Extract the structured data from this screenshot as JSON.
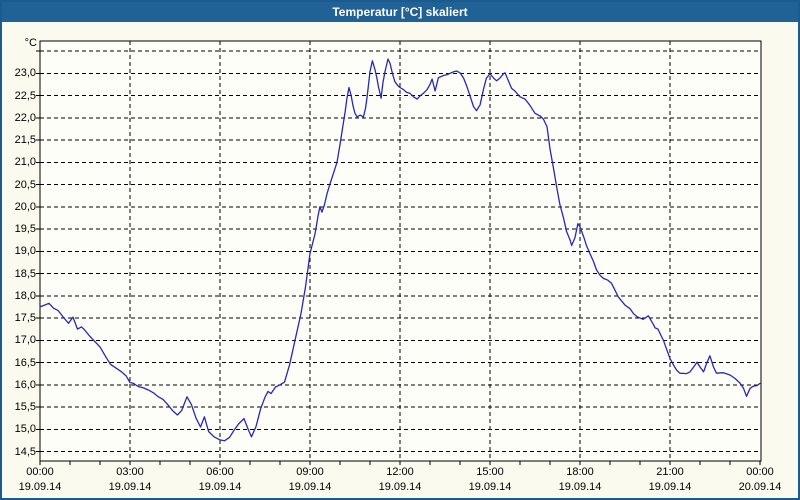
{
  "window": {
    "title": "Temperatur [°C] skaliert"
  },
  "colors": {
    "window_border": "#1b5a8e",
    "titlebar_bg": "#206196",
    "titlebar_text": "#ffffff",
    "content_bg": "#fafaef",
    "plot_bg": "#fefef8",
    "grid": "#000000",
    "axis": "#000000",
    "line": "#2828b4",
    "label_text": "#000000"
  },
  "chart_data": {
    "type": "line",
    "title": "Temperatur [°C] skaliert",
    "unit_label": "°C",
    "xlabel": "",
    "ylabel": "°C",
    "grid": "dashed",
    "legend": "none",
    "ylim": [
      14.3,
      23.7
    ],
    "xlim_hours": [
      0,
      24
    ],
    "y_gridline_values": [
      23.5,
      23.0,
      22.5,
      22.0,
      21.5,
      21.0,
      20.5,
      20.0,
      19.5,
      19.0,
      18.5,
      18.0,
      17.5,
      17.0,
      16.5,
      16.0,
      15.5,
      15.0,
      14.5
    ],
    "y_ticks": [
      {
        "value": 23.0,
        "label": "23,0"
      },
      {
        "value": 22.5,
        "label": "22,5"
      },
      {
        "value": 22.0,
        "label": "22,0"
      },
      {
        "value": 21.5,
        "label": "21,5"
      },
      {
        "value": 21.0,
        "label": "21,0"
      },
      {
        "value": 20.5,
        "label": "20,5"
      },
      {
        "value": 20.0,
        "label": "20,0"
      },
      {
        "value": 19.5,
        "label": "19,5"
      },
      {
        "value": 19.0,
        "label": "19,0"
      },
      {
        "value": 18.5,
        "label": "18,5"
      },
      {
        "value": 18.0,
        "label": "18,0"
      },
      {
        "value": 17.5,
        "label": "17,5"
      },
      {
        "value": 17.0,
        "label": "17,0"
      },
      {
        "value": 16.5,
        "label": "16,5"
      },
      {
        "value": 16.0,
        "label": "16,0"
      },
      {
        "value": 15.5,
        "label": "15,5"
      },
      {
        "value": 15.0,
        "label": "15,0"
      },
      {
        "value": 14.5,
        "label": "14,5"
      }
    ],
    "x_gridline_hours": [
      3,
      6,
      9,
      12,
      15,
      18,
      21
    ],
    "x_minor_tick_every_hours": 1,
    "x_ticks": [
      {
        "hour": 0,
        "time": "00:00",
        "date": "19.09.14"
      },
      {
        "hour": 3,
        "time": "03:00",
        "date": "19.09.14"
      },
      {
        "hour": 6,
        "time": "06:00",
        "date": "19.09.14"
      },
      {
        "hour": 9,
        "time": "09:00",
        "date": "19.09.14"
      },
      {
        "hour": 12,
        "time": "12:00",
        "date": "19.09.14"
      },
      {
        "hour": 15,
        "time": "15:00",
        "date": "19.09.14"
      },
      {
        "hour": 18,
        "time": "18:00",
        "date": "19.09.14"
      },
      {
        "hour": 21,
        "time": "21:00",
        "date": "19.09.14"
      },
      {
        "hour": 24,
        "time": "00:00",
        "date": "20.09.14"
      }
    ],
    "series": [
      {
        "name": "Temperatur",
        "color": "#2828b4",
        "points_hour_degC": [
          [
            0.0,
            17.75
          ],
          [
            0.15,
            17.79
          ],
          [
            0.3,
            17.83
          ],
          [
            0.45,
            17.72
          ],
          [
            0.6,
            17.67
          ],
          [
            0.8,
            17.5
          ],
          [
            0.95,
            17.38
          ],
          [
            1.1,
            17.52
          ],
          [
            1.25,
            17.25
          ],
          [
            1.38,
            17.3
          ],
          [
            1.48,
            17.24
          ],
          [
            1.62,
            17.12
          ],
          [
            1.8,
            16.99
          ],
          [
            2.0,
            16.85
          ],
          [
            2.2,
            16.62
          ],
          [
            2.35,
            16.46
          ],
          [
            2.52,
            16.38
          ],
          [
            2.7,
            16.3
          ],
          [
            2.87,
            16.2
          ],
          [
            3.0,
            16.05
          ],
          [
            3.12,
            16.03
          ],
          [
            3.27,
            15.96
          ],
          [
            3.45,
            15.93
          ],
          [
            3.62,
            15.88
          ],
          [
            3.78,
            15.82
          ],
          [
            3.92,
            15.74
          ],
          [
            4.1,
            15.67
          ],
          [
            4.25,
            15.56
          ],
          [
            4.42,
            15.42
          ],
          [
            4.58,
            15.32
          ],
          [
            4.72,
            15.42
          ],
          [
            4.9,
            15.73
          ],
          [
            5.05,
            15.55
          ],
          [
            5.2,
            15.25
          ],
          [
            5.35,
            15.05
          ],
          [
            5.48,
            15.28
          ],
          [
            5.62,
            14.95
          ],
          [
            5.8,
            14.83
          ],
          [
            6.0,
            14.76
          ],
          [
            6.15,
            14.74
          ],
          [
            6.32,
            14.82
          ],
          [
            6.47,
            14.98
          ],
          [
            6.62,
            15.12
          ],
          [
            6.8,
            15.24
          ],
          [
            6.95,
            14.98
          ],
          [
            7.05,
            14.83
          ],
          [
            7.2,
            15.06
          ],
          [
            7.35,
            15.45
          ],
          [
            7.5,
            15.72
          ],
          [
            7.6,
            15.85
          ],
          [
            7.7,
            15.8
          ],
          [
            7.85,
            15.95
          ],
          [
            8.0,
            16.0
          ],
          [
            8.15,
            16.06
          ],
          [
            8.32,
            16.45
          ],
          [
            8.5,
            17.0
          ],
          [
            8.7,
            17.6
          ],
          [
            8.85,
            18.2
          ],
          [
            9.0,
            18.95
          ],
          [
            9.17,
            19.4
          ],
          [
            9.27,
            19.8
          ],
          [
            9.33,
            20.0
          ],
          [
            9.4,
            19.88
          ],
          [
            9.48,
            20.04
          ],
          [
            9.57,
            20.3
          ],
          [
            9.67,
            20.52
          ],
          [
            9.78,
            20.75
          ],
          [
            9.9,
            21.0
          ],
          [
            10.0,
            21.4
          ],
          [
            10.1,
            21.83
          ],
          [
            10.17,
            22.13
          ],
          [
            10.23,
            22.43
          ],
          [
            10.3,
            22.68
          ],
          [
            10.37,
            22.5
          ],
          [
            10.44,
            22.25
          ],
          [
            10.5,
            22.1
          ],
          [
            10.57,
            22.02
          ],
          [
            10.67,
            22.06
          ],
          [
            10.78,
            22.02
          ],
          [
            10.85,
            22.21
          ],
          [
            10.9,
            22.45
          ],
          [
            10.95,
            22.74
          ],
          [
            11.0,
            23.04
          ],
          [
            11.08,
            23.28
          ],
          [
            11.17,
            23.07
          ],
          [
            11.23,
            22.89
          ],
          [
            11.28,
            22.7
          ],
          [
            11.37,
            22.44
          ],
          [
            11.43,
            22.78
          ],
          [
            11.5,
            23.04
          ],
          [
            11.6,
            23.32
          ],
          [
            11.67,
            23.22
          ],
          [
            11.72,
            23.07
          ],
          [
            11.78,
            22.92
          ],
          [
            11.83,
            22.81
          ],
          [
            11.93,
            22.72
          ],
          [
            12.0,
            22.68
          ],
          [
            12.12,
            22.63
          ],
          [
            12.22,
            22.57
          ],
          [
            12.33,
            22.55
          ],
          [
            12.45,
            22.47
          ],
          [
            12.57,
            22.42
          ],
          [
            12.67,
            22.49
          ],
          [
            12.78,
            22.55
          ],
          [
            12.9,
            22.63
          ],
          [
            13.0,
            22.75
          ],
          [
            13.07,
            22.87
          ],
          [
            13.17,
            22.6
          ],
          [
            13.28,
            22.9
          ],
          [
            13.45,
            22.95
          ],
          [
            13.57,
            22.97
          ],
          [
            13.67,
            23.0
          ],
          [
            13.78,
            23.03
          ],
          [
            13.88,
            23.05
          ],
          [
            14.0,
            23.01
          ],
          [
            14.12,
            22.89
          ],
          [
            14.22,
            22.72
          ],
          [
            14.33,
            22.5
          ],
          [
            14.45,
            22.25
          ],
          [
            14.55,
            22.16
          ],
          [
            14.67,
            22.29
          ],
          [
            14.78,
            22.63
          ],
          [
            14.88,
            22.89
          ],
          [
            15.0,
            22.99
          ],
          [
            15.12,
            22.89
          ],
          [
            15.22,
            22.83
          ],
          [
            15.33,
            22.89
          ],
          [
            15.45,
            22.99
          ],
          [
            15.5,
            23.01
          ],
          [
            15.62,
            22.82
          ],
          [
            15.72,
            22.66
          ],
          [
            15.83,
            22.6
          ],
          [
            16.0,
            22.47
          ],
          [
            16.17,
            22.42
          ],
          [
            16.33,
            22.28
          ],
          [
            16.5,
            22.1
          ],
          [
            16.67,
            22.04
          ],
          [
            16.78,
            21.97
          ],
          [
            16.9,
            21.8
          ],
          [
            17.0,
            21.3
          ],
          [
            17.12,
            20.85
          ],
          [
            17.22,
            20.45
          ],
          [
            17.33,
            20.05
          ],
          [
            17.45,
            19.75
          ],
          [
            17.55,
            19.45
          ],
          [
            17.67,
            19.25
          ],
          [
            17.72,
            19.13
          ],
          [
            17.83,
            19.3
          ],
          [
            17.93,
            19.62
          ],
          [
            18.0,
            19.55
          ],
          [
            18.12,
            19.33
          ],
          [
            18.22,
            19.12
          ],
          [
            18.33,
            18.95
          ],
          [
            18.45,
            18.77
          ],
          [
            18.55,
            18.58
          ],
          [
            18.67,
            18.46
          ],
          [
            18.78,
            18.39
          ],
          [
            18.93,
            18.35
          ],
          [
            19.05,
            18.28
          ],
          [
            19.17,
            18.12
          ],
          [
            19.28,
            17.97
          ],
          [
            19.5,
            17.79
          ],
          [
            19.67,
            17.71
          ],
          [
            19.78,
            17.6
          ],
          [
            19.9,
            17.53
          ],
          [
            20.1,
            17.47
          ],
          [
            20.28,
            17.55
          ],
          [
            20.33,
            17.49
          ],
          [
            20.45,
            17.35
          ],
          [
            20.5,
            17.28
          ],
          [
            20.6,
            17.25
          ],
          [
            20.67,
            17.15
          ],
          [
            20.78,
            17.0
          ],
          [
            20.88,
            16.81
          ],
          [
            21.0,
            16.59
          ],
          [
            21.12,
            16.44
          ],
          [
            21.22,
            16.33
          ],
          [
            21.33,
            16.26
          ],
          [
            21.55,
            16.25
          ],
          [
            21.67,
            16.29
          ],
          [
            21.83,
            16.44
          ],
          [
            21.9,
            16.51
          ],
          [
            22.0,
            16.4
          ],
          [
            22.12,
            16.29
          ],
          [
            22.22,
            16.48
          ],
          [
            22.33,
            16.65
          ],
          [
            22.45,
            16.4
          ],
          [
            22.55,
            16.26
          ],
          [
            22.78,
            16.27
          ],
          [
            23.0,
            16.22
          ],
          [
            23.17,
            16.14
          ],
          [
            23.33,
            16.04
          ],
          [
            23.45,
            15.92
          ],
          [
            23.55,
            15.74
          ],
          [
            23.67,
            15.92
          ],
          [
            23.78,
            15.97
          ],
          [
            23.9,
            15.98
          ],
          [
            24.0,
            16.03
          ]
        ]
      }
    ]
  }
}
